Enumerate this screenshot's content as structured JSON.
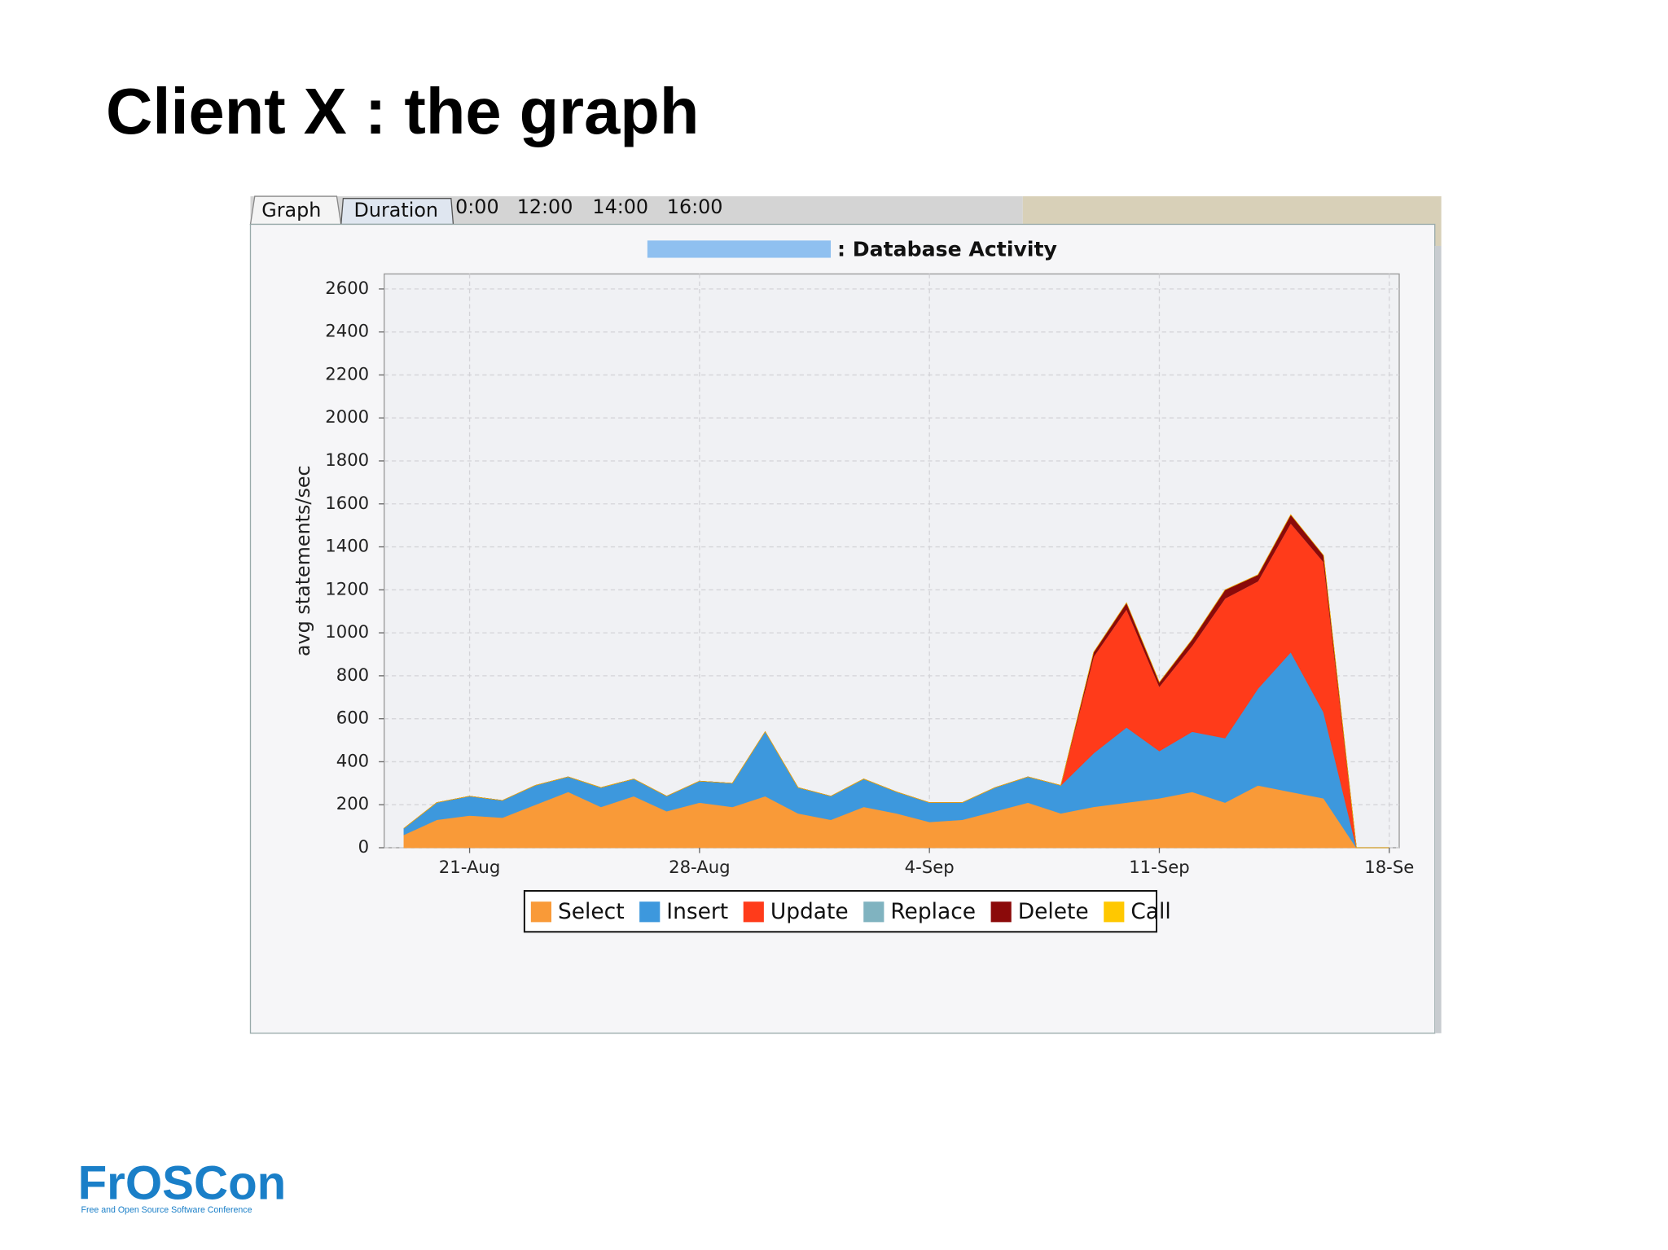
{
  "slide_title": "Client X : the graph",
  "tabs": [
    "Graph",
    "Duration"
  ],
  "time_labels": [
    "0:00",
    "12:00",
    "14:00",
    "16:00"
  ],
  "logo": {
    "name": "FrOSCon",
    "tagline": "Free and Open Source Software Conference"
  },
  "chart_data": {
    "type": "area",
    "stacked": true,
    "title": ": Database Activity",
    "y_label": "avg statements/sec",
    "categories": [
      null,
      null,
      "21-Aug",
      null,
      null,
      null,
      null,
      null,
      null,
      "28-Aug",
      null,
      null,
      null,
      null,
      null,
      null,
      "4-Sep",
      null,
      null,
      null,
      null,
      null,
      null,
      "11-Sep",
      null,
      null,
      null,
      null,
      null,
      null,
      "18-Se"
    ],
    "series": [
      {
        "name": "Select",
        "color": "#f99a38",
        "values": [
          60,
          130,
          150,
          140,
          200,
          260,
          190,
          240,
          170,
          210,
          190,
          240,
          160,
          130,
          190,
          160,
          120,
          130,
          170,
          210,
          160,
          190,
          210,
          230,
          260,
          210,
          290,
          260,
          230,
          0,
          0
        ]
      },
      {
        "name": "Insert",
        "color": "#3d98dd",
        "values": [
          30,
          80,
          90,
          80,
          90,
          70,
          90,
          80,
          70,
          100,
          110,
          300,
          120,
          110,
          130,
          100,
          90,
          80,
          110,
          120,
          130,
          250,
          350,
          220,
          280,
          300,
          450,
          650,
          400,
          0,
          0
        ]
      },
      {
        "name": "Update",
        "color": "#ff3b1a",
        "values": [
          0,
          0,
          0,
          0,
          0,
          0,
          0,
          0,
          0,
          0,
          0,
          0,
          0,
          0,
          0,
          0,
          0,
          0,
          0,
          0,
          0,
          450,
          550,
          300,
          400,
          650,
          500,
          600,
          700,
          0,
          0
        ]
      },
      {
        "name": "Replace",
        "color": "#80b3c0",
        "values": [
          0,
          0,
          0,
          0,
          0,
          0,
          0,
          0,
          0,
          0,
          0,
          0,
          0,
          0,
          0,
          0,
          0,
          0,
          0,
          0,
          0,
          0,
          0,
          0,
          0,
          0,
          0,
          0,
          0,
          0,
          0
        ]
      },
      {
        "name": "Delete",
        "color": "#8b0a0a",
        "values": [
          0,
          0,
          0,
          0,
          0,
          0,
          0,
          0,
          0,
          0,
          0,
          0,
          0,
          0,
          0,
          0,
          0,
          0,
          0,
          0,
          0,
          20,
          30,
          20,
          30,
          40,
          30,
          40,
          30,
          0,
          0
        ]
      },
      {
        "name": "Call",
        "color": "#ffc800",
        "values": [
          0,
          0,
          0,
          0,
          0,
          0,
          0,
          0,
          0,
          0,
          0,
          0,
          0,
          0,
          0,
          0,
          0,
          0,
          0,
          0,
          0,
          0,
          0,
          0,
          0,
          0,
          0,
          0,
          0,
          0,
          0
        ]
      }
    ],
    "ylim": [
      0,
      2670
    ],
    "yticks": [
      0,
      200,
      400,
      600,
      800,
      1000,
      1200,
      1400,
      1600,
      1800,
      2000,
      2200,
      2400,
      2600
    ],
    "grid": true,
    "legend": "bottom"
  }
}
